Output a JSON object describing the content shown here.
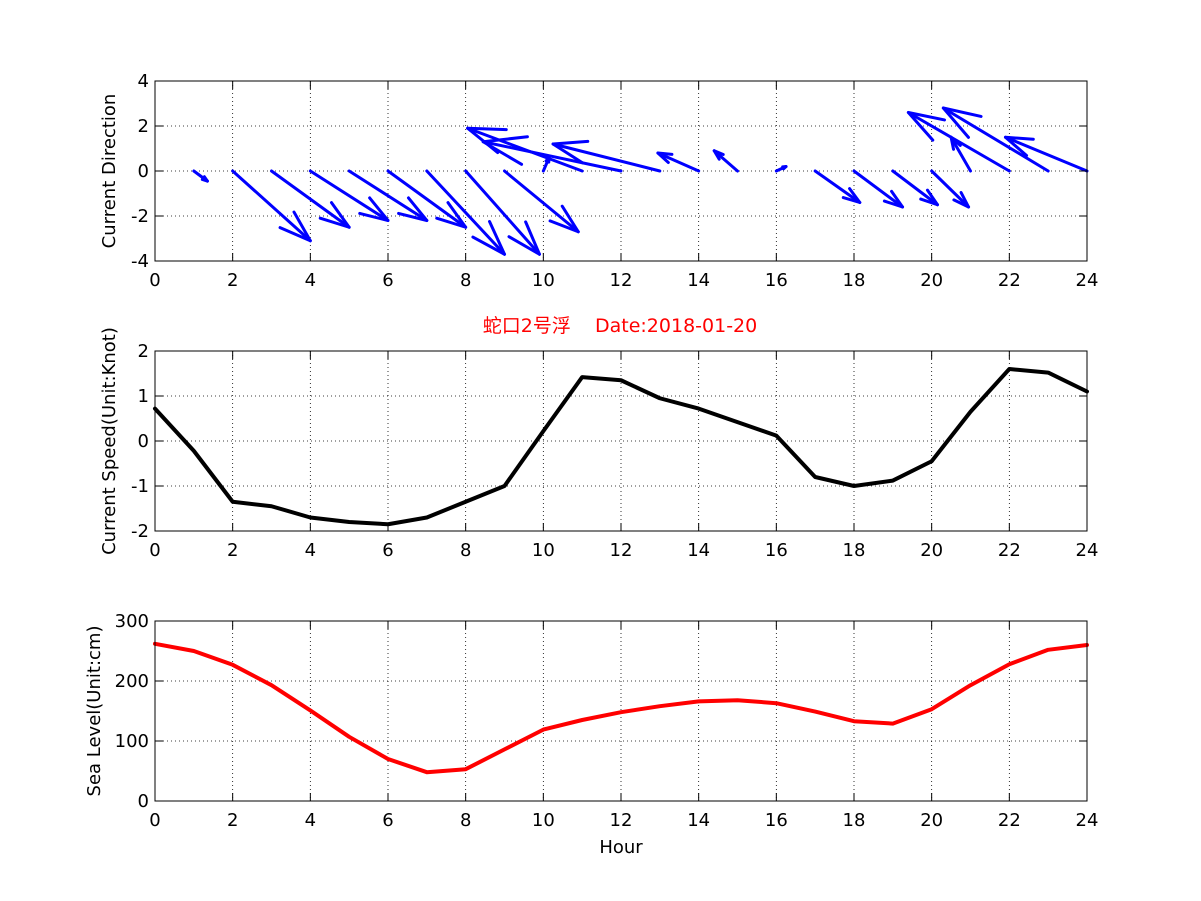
{
  "figure": {
    "title": "蛇口2号浮    Date:2018-01-20"
  },
  "chart_data": [
    {
      "type": "quiver",
      "ylabel": "Current Direction",
      "xlim": [
        0,
        24
      ],
      "ylim": [
        -4,
        4
      ],
      "xticks": [
        0,
        2,
        4,
        6,
        8,
        10,
        12,
        14,
        16,
        18,
        20,
        22,
        24
      ],
      "yticks": [
        -4,
        -2,
        0,
        2,
        4
      ],
      "grid": true,
      "color": "#0000ff",
      "origin_y": 0,
      "x": [
        1,
        2,
        3,
        4,
        5,
        6,
        7,
        8,
        9,
        10,
        11,
        12,
        13,
        14,
        15,
        16,
        17,
        18,
        19,
        20,
        21,
        22,
        23,
        24
      ],
      "u": [
        0.35,
        2.0,
        2.0,
        2.0,
        2.0,
        2.0,
        2.0,
        1.9,
        1.9,
        0.15,
        -2.95,
        -3.55,
        -2.75,
        -1.05,
        -0.6,
        0.25,
        1.15,
        1.25,
        1.15,
        0.95,
        -0.5,
        -2.6,
        -2.7,
        -2.1
      ],
      "v": [
        -0.45,
        -3.1,
        -2.5,
        -2.2,
        -2.2,
        -2.5,
        -3.7,
        -3.7,
        -2.7,
        0.6,
        1.9,
        1.3,
        1.2,
        0.8,
        0.9,
        0.2,
        -1.4,
        -1.6,
        -1.5,
        -1.6,
        1.5,
        2.6,
        2.8,
        1.5
      ]
    },
    {
      "type": "line",
      "ylabel": "Current Speed(Unit:Knot)",
      "xlim": [
        0,
        24
      ],
      "ylim": [
        -2,
        2
      ],
      "xticks": [
        0,
        2,
        4,
        6,
        8,
        10,
        12,
        14,
        16,
        18,
        20,
        22,
        24
      ],
      "yticks": [
        -2,
        -1,
        0,
        1,
        2
      ],
      "grid": true,
      "color": "#000000",
      "x": [
        0,
        1,
        2,
        3,
        4,
        5,
        6,
        7,
        8,
        9,
        10,
        11,
        12,
        13,
        14,
        15,
        16,
        17,
        18,
        19,
        20,
        21,
        22,
        23,
        24
      ],
      "y": [
        0.72,
        -0.22,
        -1.35,
        -1.45,
        -1.7,
        -1.8,
        -1.85,
        -1.7,
        -1.35,
        -1.0,
        0.22,
        1.42,
        1.35,
        0.95,
        0.72,
        0.42,
        0.12,
        -0.8,
        -1.0,
        -0.88,
        -0.45,
        0.65,
        1.6,
        1.52,
        1.1
      ]
    },
    {
      "type": "line",
      "xlabel": "Hour",
      "ylabel": "Sea Level(Unit:cm)",
      "xlim": [
        0,
        24
      ],
      "ylim": [
        0,
        300
      ],
      "xticks": [
        0,
        2,
        4,
        6,
        8,
        10,
        12,
        14,
        16,
        18,
        20,
        22,
        24
      ],
      "yticks": [
        0,
        100,
        200,
        300
      ],
      "grid": true,
      "color": "#ff0000",
      "x": [
        0,
        1,
        2,
        3,
        4,
        5,
        6,
        7,
        8,
        9,
        10,
        11,
        12,
        13,
        14,
        15,
        16,
        17,
        18,
        19,
        20,
        21,
        22,
        23,
        24
      ],
      "y": [
        262,
        250,
        227,
        193,
        151,
        107,
        70,
        48,
        53,
        86,
        119,
        135,
        148,
        158,
        166,
        168,
        163,
        149,
        133,
        129,
        153,
        193,
        228,
        252,
        260
      ]
    }
  ]
}
